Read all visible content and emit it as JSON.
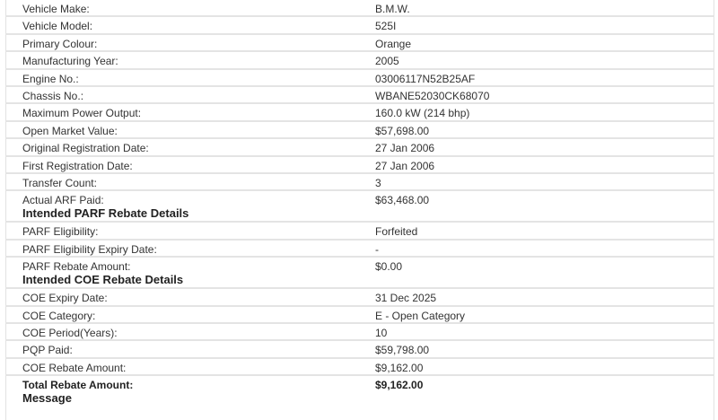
{
  "vehicle_details": [
    {
      "label": "Vehicle Make:",
      "value": "B.M.W."
    },
    {
      "label": "Vehicle Model:",
      "value": "525I"
    },
    {
      "label": "Primary Colour:",
      "value": "Orange"
    },
    {
      "label": "Manufacturing Year:",
      "value": "2005"
    },
    {
      "label": "Engine No.:",
      "value": "03006117N52B25AF"
    },
    {
      "label": "Chassis No.:",
      "value": "WBANE52030CK68070"
    },
    {
      "label": "Maximum Power Output:",
      "value": "160.0 kW  (214 bhp)"
    },
    {
      "label": "Open Market Value:",
      "value": "$57,698.00"
    },
    {
      "label": "Original Registration Date:",
      "value": "27 Jan 2006"
    },
    {
      "label": "First Registration Date:",
      "value": "27 Jan 2006"
    },
    {
      "label": "Transfer Count:",
      "value": "3"
    },
    {
      "label": "Actual ARF Paid:",
      "value": "$63,468.00"
    }
  ],
  "parf_heading": "Intended PARF Rebate Details",
  "parf_details": [
    {
      "label": "PARF Eligibility:",
      "value": "Forfeited"
    },
    {
      "label": "PARF Eligibility Expiry Date:",
      "value": "-"
    },
    {
      "label": "PARF Rebate Amount:",
      "value": "$0.00"
    }
  ],
  "coe_heading": "Intended COE Rebate Details",
  "coe_details": [
    {
      "label": "COE Expiry Date:",
      "value": "31 Dec 2025"
    },
    {
      "label": "COE Category:",
      "value": "E - Open Category"
    },
    {
      "label": "COE Period(Years):",
      "value": "10"
    },
    {
      "label": "PQP Paid:",
      "value": "$59,798.00"
    },
    {
      "label": "COE Rebate Amount:",
      "value": "$9,162.00"
    },
    {
      "label": "Total Rebate Amount:",
      "value": "$9,162.00"
    }
  ],
  "message_heading": "Message"
}
